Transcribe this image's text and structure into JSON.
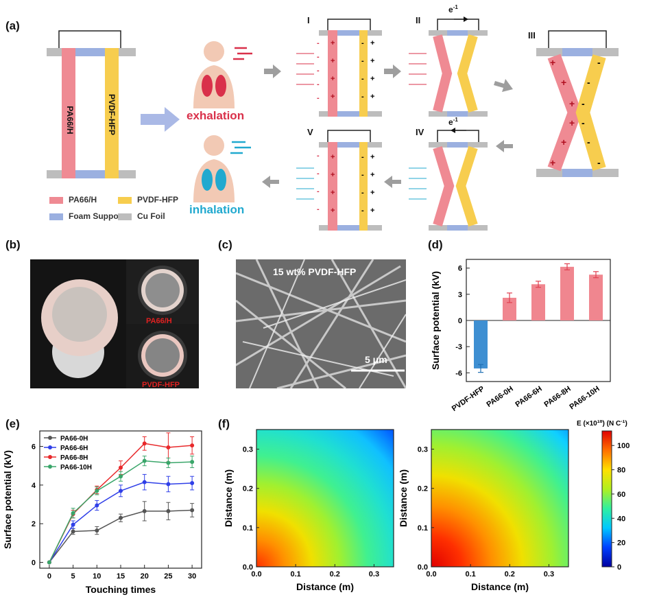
{
  "panels": {
    "a": "(a)",
    "b": "(b)",
    "c": "(c)",
    "d": "(d)",
    "e": "(e)",
    "f": "(f)"
  },
  "panel_a": {
    "device_left_label": "PA66/H",
    "device_right_label": "PVDF-HFP",
    "exhalation": "exhalation",
    "inhalation": "inhalation",
    "stages": [
      "I",
      "II",
      "III",
      "IV",
      "V"
    ],
    "electron_label": "e",
    "electron_sup": "-1",
    "legend": [
      {
        "label": "PA66/H",
        "color": "#ef8a93"
      },
      {
        "label": "PVDF-HFP",
        "color": "#f7cd4e"
      },
      {
        "label": "Foam Support",
        "color": "#9bb0e0"
      },
      {
        "label": "Cu Foil",
        "color": "#bdbdbd"
      }
    ],
    "colors": {
      "pa66": "#ef8a93",
      "pvdf": "#f7cd4e",
      "foam": "#9bb0e0",
      "cu": "#bdbdbd",
      "arrow": "#a7b5e6",
      "exhale": "#d9304a",
      "inhale": "#21a9cf"
    }
  },
  "panel_b": {
    "label_top": "PA66/H",
    "label_bottom": "PVDF-HFP"
  },
  "panel_c": {
    "caption": "15 wt% PVDF-HFP",
    "scale": "5 μm"
  },
  "chart_data": [
    {
      "id": "d",
      "type": "bar",
      "categories": [
        "PVDF-HFP",
        "PA66-0H",
        "PA66-6H",
        "PA66-8H",
        "PA66-10H"
      ],
      "values": [
        -5.5,
        2.6,
        4.15,
        6.15,
        5.25
      ],
      "errors": [
        0.45,
        0.55,
        0.35,
        0.35,
        0.35
      ],
      "colors": [
        "#3e8fd2",
        "#f0868f",
        "#f0868f",
        "#f0868f",
        "#f0868f"
      ],
      "ylabel": "Surface potential (kV)",
      "ylim": [
        -7,
        7
      ],
      "yticks": [
        -6,
        -3,
        0,
        3,
        6
      ]
    },
    {
      "id": "e",
      "type": "line",
      "x": [
        0,
        5,
        10,
        15,
        20,
        25,
        30
      ],
      "xlabel": "Touching times",
      "ylabel": "Surface potential (kV)",
      "xlim": [
        -2,
        32
      ],
      "ylim": [
        -0.3,
        6.8
      ],
      "xticks": [
        0,
        5,
        10,
        15,
        20,
        25,
        30
      ],
      "yticks": [
        0,
        2,
        4,
        6
      ],
      "legend_position": "top-left",
      "series": [
        {
          "name": "PA66-0H",
          "color": "#555555",
          "values": [
            0,
            1.6,
            1.65,
            2.3,
            2.65,
            2.65,
            2.7
          ],
          "errors": [
            0,
            0.15,
            0.2,
            0.2,
            0.5,
            0.45,
            0.35
          ]
        },
        {
          "name": "PA66-6H",
          "color": "#2f3fe8",
          "values": [
            0,
            1.95,
            2.95,
            3.7,
            4.15,
            4.05,
            4.1
          ],
          "errors": [
            0,
            0.2,
            0.25,
            0.3,
            0.4,
            0.4,
            0.35
          ]
        },
        {
          "name": "PA66-8H",
          "color": "#e8282a",
          "values": [
            0,
            2.5,
            3.75,
            4.9,
            6.15,
            5.95,
            6.05
          ],
          "errors": [
            0,
            0.2,
            0.2,
            0.35,
            0.35,
            0.75,
            0.45
          ]
        },
        {
          "name": "PA66-10H",
          "color": "#3aa66a",
          "values": [
            0,
            2.55,
            3.7,
            4.45,
            5.25,
            5.15,
            5.2
          ],
          "errors": [
            0,
            0.25,
            0.2,
            0.25,
            0.25,
            0.25,
            0.3
          ]
        }
      ]
    },
    {
      "id": "f1",
      "type": "heatmap",
      "xlabel": "Distance (m)",
      "ylabel": "Distance (m)",
      "xlim": [
        0,
        0.35
      ],
      "ylim": [
        0,
        0.35
      ],
      "xticks": [
        0.0,
        0.1,
        0.2,
        0.3
      ],
      "yticks": [
        0.0,
        0.1,
        0.2,
        0.3
      ],
      "peak_value": 95
    },
    {
      "id": "f2",
      "type": "heatmap",
      "xlabel": "Distance (m)",
      "ylabel": "Distance (m)",
      "xlim": [
        0,
        0.35
      ],
      "ylim": [
        0,
        0.35
      ],
      "xticks": [
        0.0,
        0.1,
        0.2,
        0.3
      ],
      "yticks": [
        0.0,
        0.1,
        0.2,
        0.3
      ],
      "peak_value": 115
    }
  ],
  "colorbar": {
    "title": "E (×10",
    "title_sup": "18",
    "title_tail": ") (N C",
    "title_unit_sup": "-1",
    "title_end": ")",
    "ticks": [
      0,
      20,
      40,
      60,
      80,
      100
    ],
    "range": [
      0,
      112
    ]
  }
}
